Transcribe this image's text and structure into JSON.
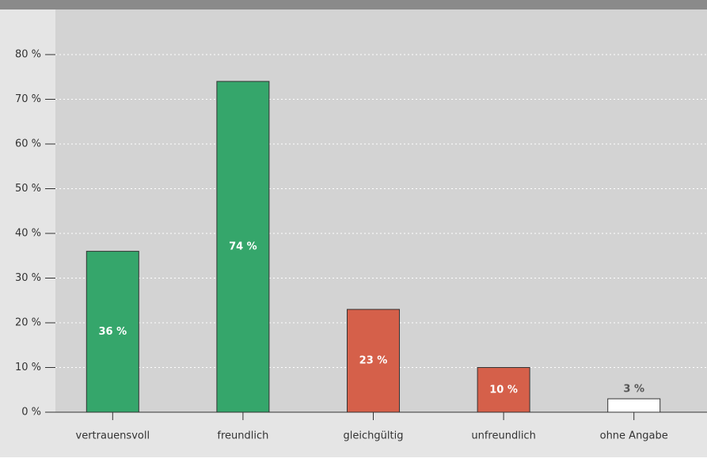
{
  "chart_data": {
    "type": "bar",
    "categories": [
      "vertrauensvoll",
      "freundlich",
      "gleichgültig",
      "unfreundlich",
      "ohne Angabe"
    ],
    "values": [
      36,
      74,
      23,
      10,
      3
    ],
    "value_labels": [
      "36 %",
      "74 %",
      "23 %",
      "10 %",
      "3 %"
    ],
    "colors": [
      "#35a66b",
      "#35a66b",
      "#d5604a",
      "#d5604a",
      "#ffffff"
    ],
    "value_label_colors": [
      "#ffffff",
      "#ffffff",
      "#ffffff",
      "#ffffff",
      "#9a9a9a"
    ],
    "ylim": [
      0,
      80
    ],
    "yticks": [
      {
        "value": 0,
        "label": "0 %"
      },
      {
        "value": 10,
        "label": "10 %"
      },
      {
        "value": 20,
        "label": "20 %"
      },
      {
        "value": 30,
        "label": "30 %"
      },
      {
        "value": 40,
        "label": "40 %"
      },
      {
        "value": 50,
        "label": "50 %"
      },
      {
        "value": 60,
        "label": "60 %"
      },
      {
        "value": 70,
        "label": "70 %"
      },
      {
        "value": 80,
        "label": "80 %"
      }
    ],
    "grid": true
  }
}
